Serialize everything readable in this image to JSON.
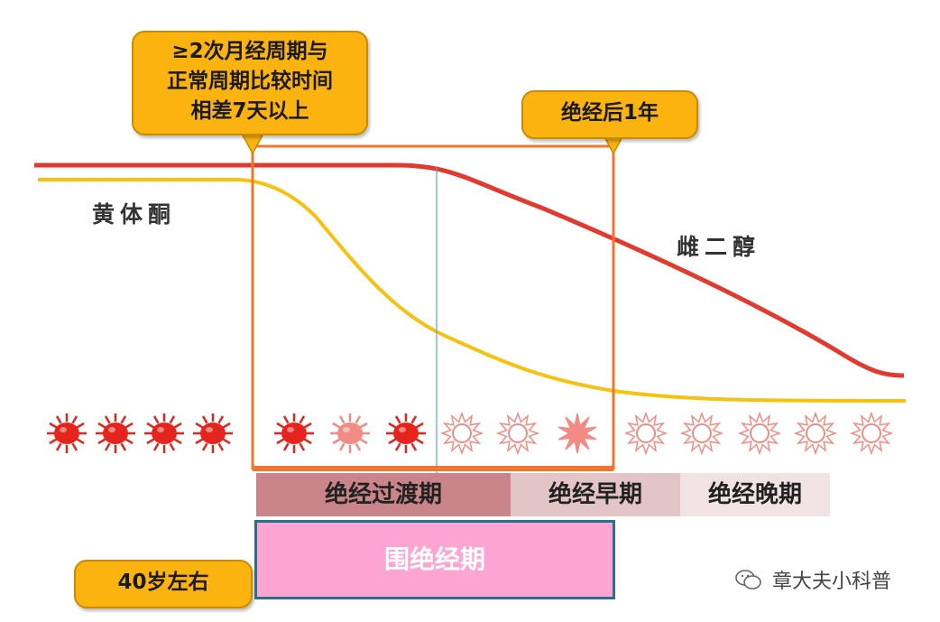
{
  "callouts": {
    "cycle_variation": [
      "≥2次月经周期与",
      "正常周期比较时间",
      "相差7天以上"
    ],
    "postmenopause_1yr": "绝经后1年",
    "age": "40岁左右"
  },
  "curves": {
    "progesterone": {
      "label": "黄体酮",
      "color": "#f5c211"
    },
    "estradiol": {
      "label": "雌二醇",
      "color": "#e23a2e"
    }
  },
  "phases": {
    "transition": "绝经过渡期",
    "early_postmenopause": "绝经早期",
    "late_postmenopause": "绝经晚期"
  },
  "perimenopause": "围绝经期",
  "watermark": "章大夫小科普",
  "colors": {
    "accent_orange": "#f0752f",
    "callout_fill": "#fbb30f",
    "ovary_active": "#e5251d",
    "ovary_inactive": "#f28b84",
    "perimenopause_fill": "#fca5d2",
    "perimenopause_border": "#2d6f86"
  },
  "ovary_icons": [
    {
      "state": "active-solid",
      "icon": "sun-filled-icon"
    },
    {
      "state": "active-solid",
      "icon": "sun-filled-icon"
    },
    {
      "state": "active-solid",
      "icon": "sun-filled-icon"
    },
    {
      "state": "active-solid",
      "icon": "sun-filled-icon"
    },
    {
      "state": "active-solid",
      "icon": "sun-filled-icon"
    },
    {
      "state": "fading",
      "icon": "sun-pale-icon"
    },
    {
      "state": "active-solid",
      "icon": "sun-filled-icon"
    },
    {
      "state": "hollow",
      "icon": "sun-outline-icon"
    },
    {
      "state": "hollow",
      "icon": "sun-outline-icon"
    },
    {
      "state": "star",
      "icon": "starburst-icon"
    },
    {
      "state": "hollow",
      "icon": "sun-outline-icon"
    },
    {
      "state": "hollow",
      "icon": "sun-outline-icon"
    },
    {
      "state": "hollow",
      "icon": "sun-outline-icon"
    },
    {
      "state": "hollow",
      "icon": "sun-outline-icon"
    },
    {
      "state": "hollow",
      "icon": "sun-outline-icon"
    }
  ]
}
